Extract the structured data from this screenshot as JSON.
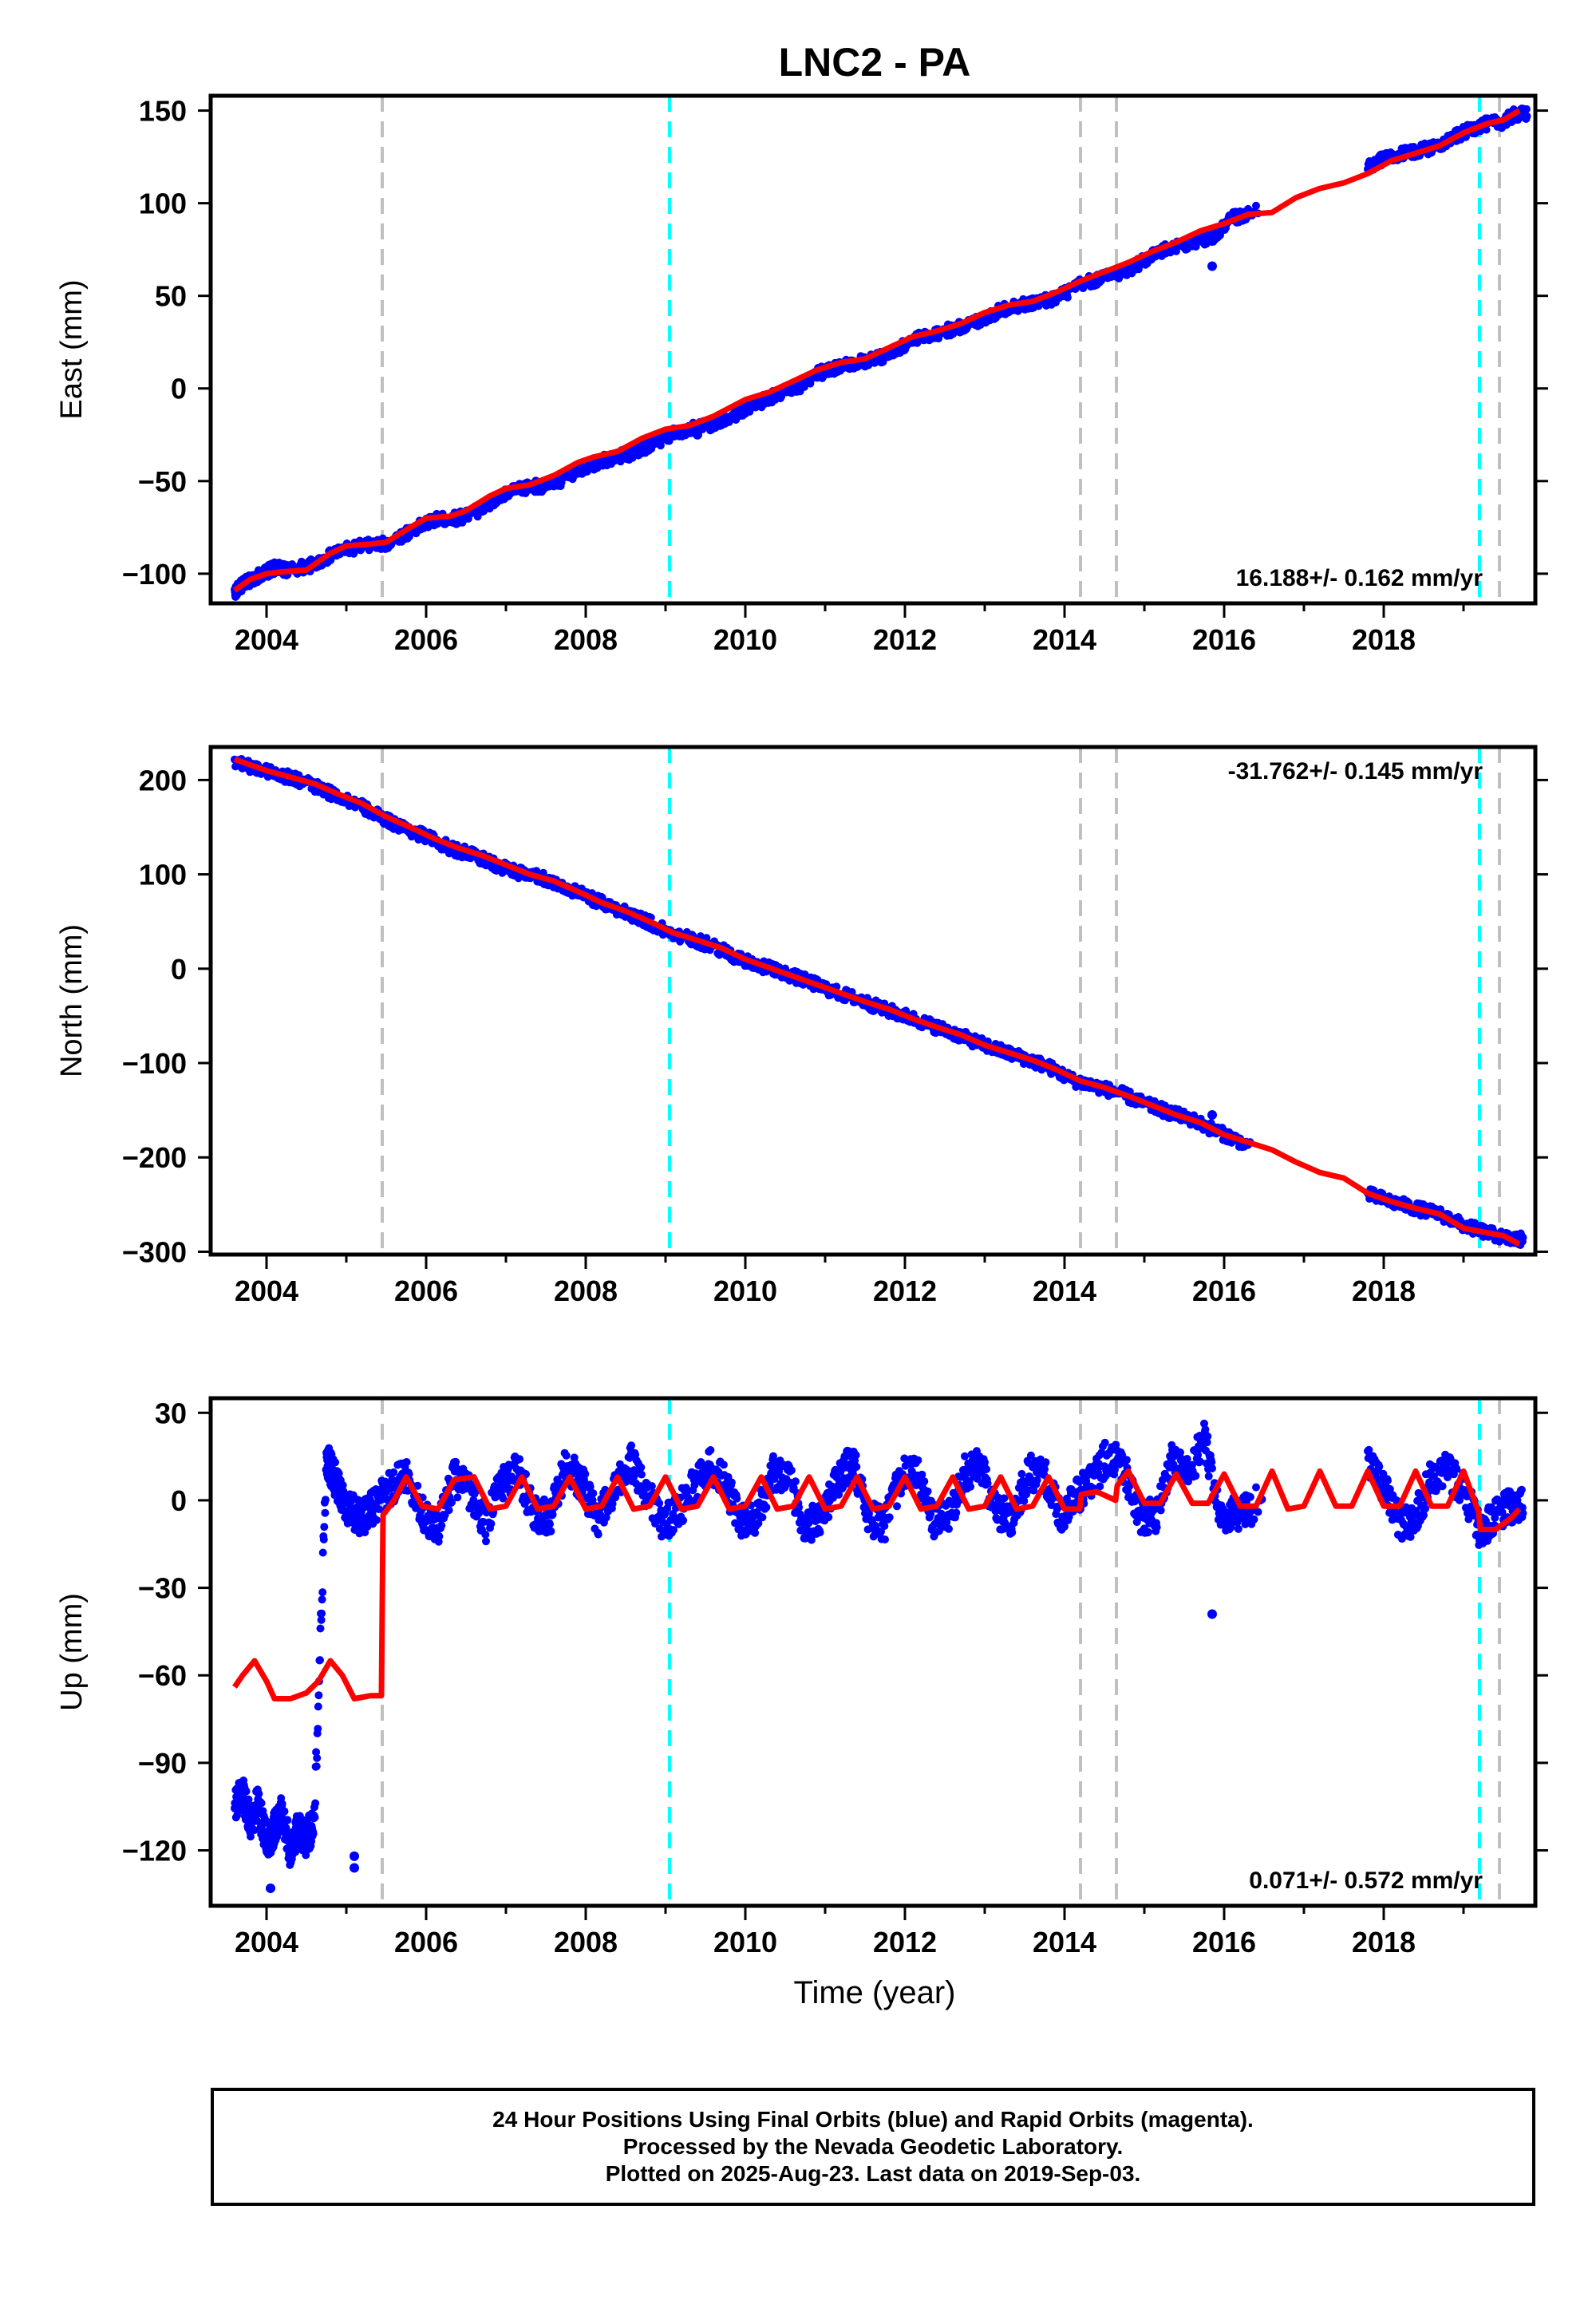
{
  "title": "LNC2 - PA",
  "x_axis": {
    "label": "Time (year)",
    "ticks": [
      "2004",
      "2006",
      "2008",
      "2010",
      "2012",
      "2014",
      "2016",
      "2018"
    ]
  },
  "colors": {
    "final_orbits": "#0000ff",
    "model": "#ff0000",
    "equipment_change": "#c0c0c0",
    "earthquake": "#00ffff"
  },
  "chart_data": [
    {
      "type": "scatter",
      "panel": "east",
      "ylabel": "East (mm)",
      "rate_label": "16.188+/- 0.162 mm/yr",
      "xlim": [
        2003.3,
        2019.9
      ],
      "ylim": [
        -116,
        158
      ],
      "yticks": [
        -100,
        -50,
        0,
        50,
        100,
        150
      ],
      "ytick_labels": [
        "−100",
        "−50",
        "0",
        "50",
        "100",
        "150"
      ],
      "gray_lines": [
        2005.45,
        2014.2,
        2014.65,
        2019.45
      ],
      "cyan_lines": [
        2009.05,
        2019.2
      ],
      "model_x": [
        2003.6,
        2003.8,
        2004.0,
        2004.2,
        2004.5,
        2004.8,
        2005.0,
        2005.3,
        2005.5,
        2005.8,
        2006.0,
        2006.3,
        2006.5,
        2006.8,
        2007.0,
        2007.3,
        2007.6,
        2007.9,
        2008.1,
        2008.4,
        2008.7,
        2009.0,
        2009.3,
        2009.6,
        2010.0,
        2010.3,
        2010.6,
        2010.9,
        2011.2,
        2011.5,
        2011.8,
        2012.1,
        2012.4,
        2012.7,
        2013.0,
        2013.3,
        2013.6,
        2013.9,
        2014.2,
        2014.5,
        2014.8,
        2015.1,
        2015.4,
        2015.7,
        2016.0,
        2016.3,
        2016.6,
        2016.9,
        2017.2,
        2017.5,
        2017.8,
        2018.1,
        2018.4,
        2018.7,
        2019.0,
        2019.3,
        2019.5,
        2019.7
      ],
      "model_y": [
        -109,
        -103,
        -100,
        -99,
        -98,
        -89,
        -85,
        -84,
        -83,
        -75,
        -70,
        -69,
        -66,
        -58,
        -54,
        -52,
        -47,
        -40,
        -37,
        -34,
        -27,
        -22,
        -20,
        -15,
        -6,
        -2,
        4,
        10,
        14,
        16,
        22,
        28,
        31,
        35,
        41,
        45,
        47,
        52,
        58,
        63,
        68,
        74,
        79,
        85,
        89,
        94,
        95,
        103,
        108,
        111,
        116,
        123,
        127,
        131,
        138,
        143,
        145,
        150
      ],
      "scatter_x": [
        2003.6,
        2003.7,
        2003.9,
        2004.1,
        2004.3,
        2004.6,
        2004.9,
        2005.2,
        2005.5,
        2005.8,
        2006.1,
        2006.4,
        2006.7,
        2007.0,
        2007.3,
        2007.6,
        2007.9,
        2008.2,
        2008.5,
        2008.8,
        2009.1,
        2009.4,
        2009.7,
        2010.0,
        2010.3,
        2010.6,
        2010.9,
        2011.2,
        2011.5,
        2011.8,
        2012.1,
        2012.4,
        2012.7,
        2013.0,
        2013.3,
        2013.6,
        2013.9,
        2014.2,
        2014.5,
        2014.8,
        2015.1,
        2015.4,
        2015.7,
        2015.9,
        2016.1,
        2016.3,
        2017.8,
        2018.0,
        2018.3,
        2018.6,
        2018.9,
        2019.2,
        2019.5,
        2019.65
      ],
      "scatter_y": [
        -110,
        -106,
        -101,
        -97,
        -98,
        -95,
        -88,
        -85,
        -84,
        -77,
        -71,
        -70,
        -65,
        -57,
        -53,
        -52,
        -44,
        -39,
        -36,
        -31,
        -24,
        -21,
        -18,
        -11,
        -5,
        -1,
        8,
        12,
        15,
        18,
        26,
        30,
        33,
        38,
        44,
        46,
        49,
        56,
        60,
        64,
        72,
        77,
        80,
        83,
        92,
        94,
        119,
        124,
        127,
        130,
        136,
        142,
        144,
        148
      ],
      "outliers": [
        {
          "x": 2015.85,
          "y": 66
        },
        {
          "x": 2009.4,
          "y": -25
        }
      ]
    },
    {
      "type": "scatter",
      "panel": "north",
      "ylabel": "North (mm)",
      "rate_label": "-31.762+/- 0.145 mm/yr",
      "xlim": [
        2003.3,
        2019.9
      ],
      "ylim": [
        -303,
        235
      ],
      "yticks": [
        -300,
        -200,
        -100,
        0,
        100,
        200
      ],
      "ytick_labels": [
        "−300",
        "−200",
        "−100",
        "0",
        "100",
        "200"
      ],
      "gray_lines": [
        2005.45,
        2014.2,
        2014.65,
        2019.45
      ],
      "cyan_lines": [
        2009.05,
        2019.2
      ],
      "model_x": [
        2003.6,
        2003.8,
        2004.0,
        2004.3,
        2004.6,
        2004.9,
        2005.2,
        2005.5,
        2005.8,
        2006.1,
        2006.4,
        2006.7,
        2007.0,
        2007.3,
        2007.6,
        2007.9,
        2008.2,
        2008.5,
        2008.8,
        2009.1,
        2009.4,
        2009.7,
        2010.0,
        2010.3,
        2010.6,
        2010.9,
        2011.2,
        2011.5,
        2011.8,
        2012.1,
        2012.4,
        2012.7,
        2013.0,
        2013.3,
        2013.6,
        2013.9,
        2014.2,
        2014.5,
        2014.8,
        2015.1,
        2015.4,
        2015.7,
        2016.0,
        2016.3,
        2016.6,
        2016.9,
        2017.2,
        2017.5,
        2017.8,
        2018.1,
        2018.4,
        2018.7,
        2019.0,
        2019.3,
        2019.5,
        2019.7
      ],
      "model_y": [
        222,
        216,
        210,
        203,
        196,
        185,
        175,
        161,
        150,
        138,
        128,
        120,
        110,
        100,
        93,
        82,
        70,
        61,
        50,
        38,
        30,
        22,
        10,
        1,
        -8,
        -17,
        -26,
        -35,
        -43,
        -53,
        -62,
        -70,
        -81,
        -89,
        -97,
        -107,
        -119,
        -126,
        -135,
        -145,
        -155,
        -163,
        -176,
        -184,
        -192,
        -205,
        -216,
        -222,
        -238,
        -247,
        -254,
        -260,
        -275,
        -280,
        -283,
        -292
      ],
      "scatter_x": [
        2003.6,
        2003.9,
        2004.2,
        2004.5,
        2004.8,
        2005.1,
        2005.4,
        2005.7,
        2006.0,
        2006.3,
        2006.6,
        2006.9,
        2007.2,
        2007.5,
        2007.8,
        2008.1,
        2008.4,
        2008.7,
        2009.0,
        2009.3,
        2009.6,
        2009.9,
        2010.2,
        2010.5,
        2010.8,
        2011.1,
        2011.4,
        2011.7,
        2012.0,
        2012.3,
        2012.6,
        2012.9,
        2013.2,
        2013.5,
        2013.8,
        2014.1,
        2014.4,
        2014.7,
        2015.0,
        2015.3,
        2015.6,
        2015.9,
        2016.2,
        2017.8,
        2018.1,
        2018.4,
        2018.7,
        2019.0,
        2019.3,
        2019.6
      ],
      "scatter_y": [
        220,
        212,
        205,
        197,
        186,
        176,
        162,
        150,
        140,
        128,
        120,
        109,
        101,
        95,
        84,
        73,
        63,
        53,
        40,
        32,
        24,
        12,
        3,
        -5,
        -14,
        -24,
        -32,
        -42,
        -50,
        -59,
        -68,
        -78,
        -87,
        -95,
        -104,
        -118,
        -125,
        -132,
        -143,
        -152,
        -160,
        -172,
        -183,
        -239,
        -247,
        -254,
        -260,
        -272,
        -280,
        -287
      ],
      "outliers": [
        {
          "x": 2015.85,
          "y": -155
        }
      ]
    },
    {
      "type": "scatter",
      "panel": "up",
      "ylabel": "Up (mm)",
      "rate_label": "0.071+/- 0.572 mm/yr",
      "xlim": [
        2003.3,
        2019.9
      ],
      "ylim": [
        -139,
        35
      ],
      "yticks": [
        -120,
        -90,
        -60,
        -30,
        0,
        30
      ],
      "ytick_labels": [
        "−120",
        "−90",
        "−60",
        "−30",
        "0",
        "30"
      ],
      "gray_lines": [
        2005.45,
        2014.2,
        2014.65,
        2019.45
      ],
      "cyan_lines": [
        2009.05,
        2019.2
      ],
      "model_x": [
        2003.6,
        2003.7,
        2003.85,
        2004.0,
        2004.1,
        2004.3,
        2004.5,
        2004.65,
        2004.8,
        2004.95,
        2005.1,
        2005.3,
        2005.44,
        2005.46,
        2005.6,
        2005.75,
        2005.95,
        2006.15,
        2006.35,
        2006.6,
        2006.8,
        2007.0,
        2007.2,
        2007.4,
        2007.6,
        2007.8,
        2008.0,
        2008.2,
        2008.4,
        2008.6,
        2008.8,
        2009.0,
        2009.2,
        2009.4,
        2009.6,
        2009.8,
        2010.0,
        2010.2,
        2010.4,
        2010.6,
        2010.8,
        2011.0,
        2011.2,
        2011.4,
        2011.6,
        2011.8,
        2012.0,
        2012.2,
        2012.4,
        2012.6,
        2012.8,
        2013.0,
        2013.2,
        2013.4,
        2013.6,
        2013.8,
        2014.0,
        2014.19,
        2014.21,
        2014.4,
        2014.64,
        2014.66,
        2014.8,
        2015.0,
        2015.2,
        2015.4,
        2015.6,
        2015.8,
        2016.0,
        2016.2,
        2016.4,
        2016.6,
        2016.8,
        2017.0,
        2017.2,
        2017.4,
        2017.6,
        2017.8,
        2018.0,
        2018.2,
        2018.4,
        2018.6,
        2018.8,
        2019.0,
        2019.19,
        2019.21,
        2019.4,
        2019.6,
        2019.7
      ],
      "model_y": [
        -64,
        -60,
        -55,
        -62,
        -68,
        -68,
        -66,
        -62,
        -55,
        -60,
        -68,
        -67,
        -67,
        -5,
        0,
        8,
        -2,
        -3,
        7,
        8,
        -3,
        -2,
        8,
        -3,
        -2,
        8,
        -3,
        -2,
        8,
        -3,
        -2,
        8,
        -3,
        -2,
        8,
        -3,
        -2,
        8,
        -3,
        -2,
        8,
        -3,
        -2,
        8,
        -3,
        -2,
        8,
        -3,
        -2,
        8,
        -3,
        -2,
        8,
        -3,
        -2,
        8,
        -3,
        -3,
        2,
        3,
        0,
        5,
        10,
        -1,
        -1,
        9,
        -1,
        -1,
        9,
        -2,
        -2,
        10,
        -3,
        -2,
        10,
        -2,
        -2,
        10,
        -2,
        -2,
        10,
        -2,
        -2,
        10,
        -4,
        -10,
        -10,
        -6,
        -3
      ],
      "scatter_x": [
        2003.6,
        2003.7,
        2003.8,
        2003.9,
        2004.0,
        2004.1,
        2004.2,
        2004.3,
        2004.4,
        2004.5,
        2004.6,
        2004.75,
        2004.85,
        2004.95,
        2005.05,
        2005.15,
        2005.25,
        2005.35,
        2005.55,
        2005.75,
        2005.95,
        2006.15,
        2006.35,
        2006.55,
        2006.75,
        2006.95,
        2007.15,
        2007.35,
        2007.55,
        2007.75,
        2007.95,
        2008.15,
        2008.35,
        2008.55,
        2008.75,
        2008.95,
        2009.15,
        2009.35,
        2009.55,
        2009.75,
        2009.95,
        2010.15,
        2010.35,
        2010.55,
        2010.75,
        2010.95,
        2011.15,
        2011.35,
        2011.55,
        2011.75,
        2011.95,
        2012.15,
        2012.35,
        2012.55,
        2012.75,
        2012.95,
        2013.15,
        2013.35,
        2013.55,
        2013.75,
        2013.95,
        2014.15,
        2014.35,
        2014.55,
        2014.75,
        2014.95,
        2015.15,
        2015.35,
        2015.55,
        2015.75,
        2015.95,
        2016.15,
        2016.35,
        2017.8,
        2018.0,
        2018.2,
        2018.4,
        2018.6,
        2018.8,
        2019.0,
        2019.2,
        2019.4,
        2019.6
      ],
      "scatter_y": [
        -106,
        -100,
        -110,
        -104,
        -118,
        -112,
        -107,
        -120,
        -112,
        -116,
        -110,
        14,
        8,
        0,
        -3,
        -6,
        -5,
        -2,
        4,
        10,
        -4,
        -10,
        8,
        3,
        -8,
        6,
        10,
        -4,
        -6,
        12,
        6,
        -6,
        2,
        14,
        4,
        -8,
        -4,
        5,
        12,
        6,
        -8,
        -5,
        10,
        8,
        -10,
        -5,
        6,
        14,
        -6,
        -8,
        8,
        10,
        -7,
        -6,
        9,
        12,
        -4,
        -6,
        10,
        8,
        -6,
        2,
        6,
        16,
        10,
        -5,
        -6,
        14,
        8,
        22,
        -6,
        -4,
        -2,
        12,
        5,
        -8,
        -6,
        8,
        10,
        4,
        -10,
        -6,
        -2
      ],
      "outliers": [
        {
          "x": 2015.85,
          "y": -39
        },
        {
          "x": 2005.1,
          "y": -122
        },
        {
          "x": 2005.1,
          "y": -126
        },
        {
          "x": 2004.05,
          "y": -133
        }
      ]
    }
  ],
  "footer": {
    "line1": "24 Hour Positions Using Final Orbits (blue) and Rapid Orbits (magenta).",
    "line2": "Processed by the Nevada Geodetic Laboratory.",
    "line3": "Plotted on 2025-Aug-23. Last data on 2019-Sep-03."
  }
}
